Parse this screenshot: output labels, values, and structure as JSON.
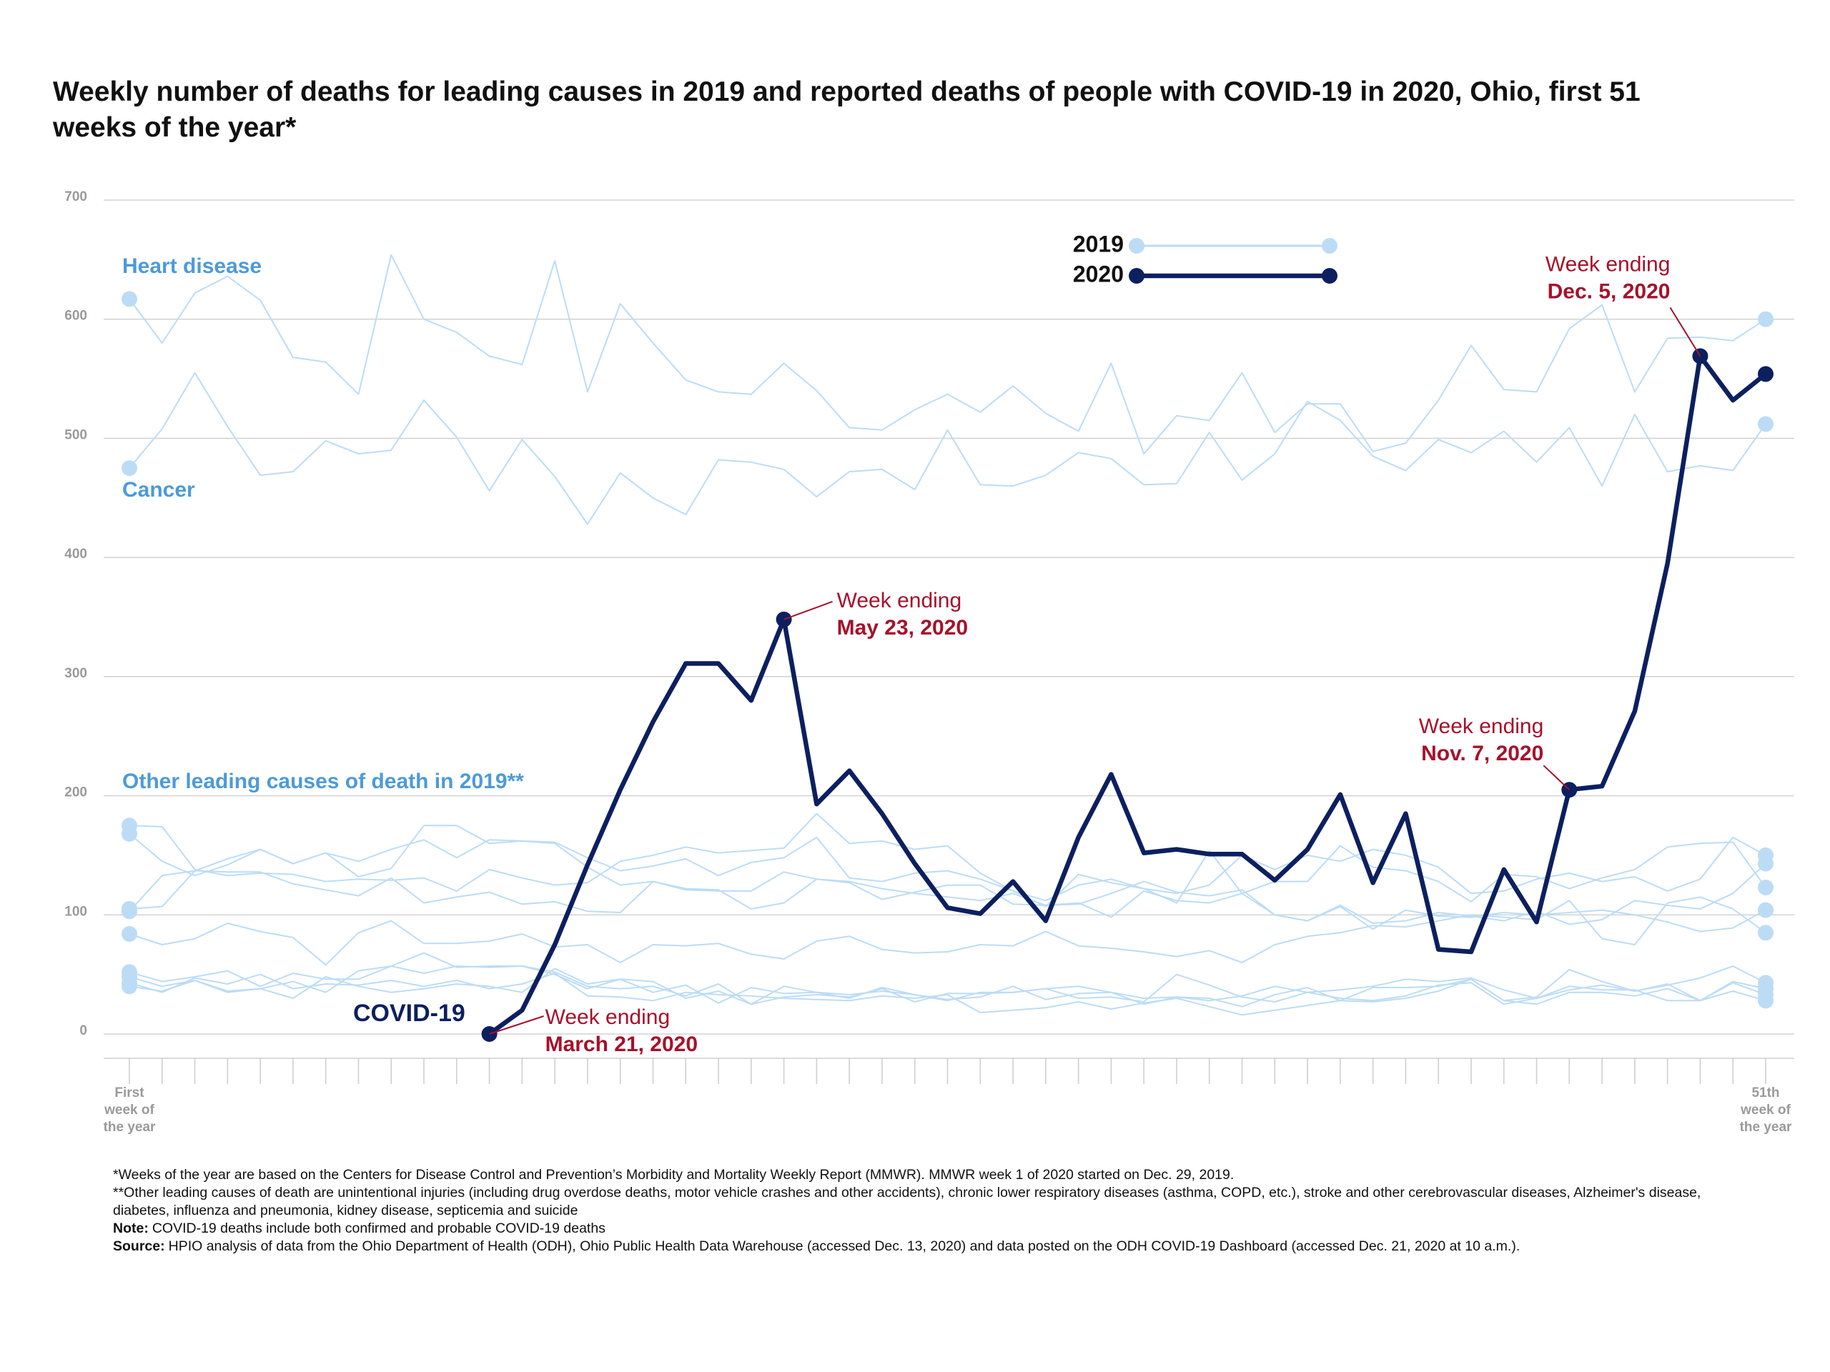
{
  "title": "Weekly number of deaths for leading causes in 2019 and reported deaths of people with COVID-19 in 2020, Ohio, first 51 weeks of the year*",
  "chart_data": {
    "type": "line",
    "categories": [
      "First week of the year",
      null,
      null,
      null,
      null,
      null,
      null,
      null,
      null,
      null,
      null,
      null,
      null,
      null,
      null,
      null,
      null,
      null,
      null,
      null,
      null,
      null,
      null,
      null,
      null,
      null,
      null,
      null,
      null,
      null,
      null,
      null,
      null,
      null,
      null,
      null,
      null,
      null,
      null,
      null,
      null,
      null,
      null,
      null,
      null,
      null,
      null,
      null,
      null,
      null,
      "51th week of the year"
    ],
    "ylim": [
      0,
      700
    ],
    "yticks": [
      0,
      100,
      200,
      300,
      400,
      500,
      600,
      700
    ],
    "grid": true,
    "legend": [
      {
        "label": "2019",
        "color": "#bcdcf6"
      },
      {
        "label": "2020",
        "color": "#0c1f5f"
      }
    ],
    "group_label": "Other leading causes of death in 2019**",
    "series": [
      {
        "color": "#bcdcf6",
        "markers": [
          0,
          50
        ],
        "values": [
          175,
          174,
          138,
          133,
          135,
          134,
          128,
          130,
          129,
          131,
          120,
          138,
          131,
          125,
          127,
          145,
          150,
          157,
          152,
          154,
          156,
          185,
          160,
          162,
          155,
          158,
          135,
          120,
          112,
          125,
          130,
          122,
          118,
          125,
          150,
          138,
          150,
          145,
          155,
          150,
          140,
          118,
          120,
          130,
          135,
          128,
          132,
          120,
          130,
          165,
          150
        ]
      },
      {
        "color": "#bcdcf6",
        "markers": [
          0,
          50
        ],
        "values": [
          168,
          145,
          133,
          142,
          155,
          143,
          152,
          145,
          155,
          163,
          148,
          163,
          162,
          160,
          140,
          125,
          128,
          122,
          121,
          105,
          110,
          130,
          128,
          122,
          118,
          115,
          112,
          118,
          108,
          110,
          98,
          120,
          112,
          110,
          118,
          100,
          95,
          108,
          93,
          95,
          102,
          99,
          95,
          103,
          92,
          96,
          112,
          108,
          105,
          118,
          143
        ]
      },
      {
        "color": "#bcdcf6",
        "markers": [
          0,
          50
        ],
        "values": [
          105,
          107,
          137,
          147,
          155,
          143,
          152,
          132,
          139,
          175,
          175,
          160,
          162,
          161,
          148,
          137,
          141,
          147,
          133,
          144,
          148,
          165,
          131,
          128,
          135,
          137,
          130,
          120,
          107,
          134,
          127,
          122,
          110,
          154,
          118,
          128,
          128,
          158,
          140,
          137,
          128,
          111,
          134,
          132,
          122,
          131,
          138,
          157,
          160,
          161,
          123
        ]
      },
      {
        "color": "#bcdcf6",
        "markers": [
          0,
          50
        ],
        "values": [
          103,
          133,
          137,
          136,
          136,
          126,
          121,
          116,
          131,
          110,
          115,
          119,
          109,
          111,
          103,
          102,
          128,
          121,
          120,
          120,
          136,
          130,
          127,
          113,
          119,
          125,
          125,
          109,
          108,
          109,
          118,
          128,
          119,
          116,
          121,
          100,
          95,
          107,
          88,
          104,
          99,
          98,
          102,
          100,
          102,
          104,
          100,
          94,
          86,
          89,
          104
        ]
      },
      {
        "color": "#bcdcf6",
        "markers": [
          0,
          50
        ],
        "values": [
          84,
          75,
          80,
          93,
          86,
          81,
          58,
          85,
          95,
          76,
          76,
          78,
          84,
          73,
          75,
          60,
          75,
          74,
          76,
          67,
          63,
          78,
          82,
          71,
          68,
          69,
          75,
          74,
          86,
          74,
          72,
          69,
          65,
          70,
          60,
          75,
          82,
          85,
          91,
          90,
          95,
          100,
          98,
          96,
          112,
          80,
          75,
          110,
          115,
          105,
          85
        ]
      },
      {
        "color": "#bcdcf6",
        "markers": [
          0,
          50
        ],
        "values": [
          52,
          44,
          48,
          53,
          40,
          51,
          46,
          46,
          57,
          51,
          57,
          56,
          57,
          52,
          40,
          38,
          40,
          32,
          42,
          25,
          40,
          35,
          33,
          36,
          33,
          29,
          31,
          40,
          29,
          34,
          35,
          25,
          31,
          30,
          23,
          33,
          39,
          28,
          39,
          39,
          40,
          46,
          28,
          31,
          54,
          44,
          36,
          41,
          47,
          57,
          43
        ]
      },
      {
        "color": "#bcdcf6",
        "markers": [
          0,
          50
        ],
        "values": [
          48,
          40,
          45,
          35,
          38,
          44,
          35,
          53,
          57,
          68,
          56,
          57,
          57,
          50,
          38,
          46,
          44,
          30,
          36,
          25,
          31,
          33,
          31,
          38,
          27,
          34,
          34,
          35,
          38,
          30,
          31,
          27,
          50,
          41,
          31,
          27,
          35,
          37,
          40,
          46,
          44,
          47,
          37,
          30,
          40,
          37,
          37,
          28,
          28,
          44,
          38
        ]
      },
      {
        "color": "#bcdcf6",
        "markers": [
          0,
          50
        ],
        "values": [
          43,
          35,
          47,
          42,
          50,
          38,
          42,
          41,
          45,
          40,
          45,
          38,
          42,
          51,
          32,
          31,
          28,
          35,
          33,
          32,
          30,
          29,
          28,
          32,
          30,
          33,
          18,
          20,
          22,
          27,
          21,
          26,
          30,
          23,
          16,
          20,
          24,
          28,
          27,
          30,
          36,
          46,
          28,
          25,
          35,
          35,
          32,
          38,
          28,
          43,
          33
        ]
      },
      {
        "color": "#bcdcf6",
        "markers": [
          0,
          50
        ],
        "values": [
          40,
          36,
          45,
          36,
          38,
          30,
          48,
          40,
          35,
          38,
          42,
          40,
          35,
          55,
          42,
          46,
          35,
          41,
          26,
          39,
          34,
          35,
          30,
          39,
          33,
          28,
          35,
          35,
          38,
          40,
          35,
          30,
          31,
          28,
          32,
          40,
          35,
          30,
          28,
          32,
          41,
          43,
          25,
          30,
          37,
          41,
          36,
          42,
          28,
          36,
          28
        ]
      },
      {
        "name": "Heart disease",
        "color": "#bcdcf6",
        "markers": [
          0,
          50
        ],
        "values": [
          617,
          580,
          622,
          636,
          616,
          568,
          564,
          537,
          654,
          600,
          589,
          569,
          562,
          649,
          539,
          613,
          580,
          549,
          539,
          537,
          563,
          540,
          509,
          507,
          524,
          537,
          522,
          544,
          521,
          506,
          563,
          487,
          519,
          515,
          555,
          505,
          529,
          529,
          489,
          496,
          532,
          578,
          541,
          539,
          592,
          612,
          539,
          584,
          585,
          582,
          600
        ]
      },
      {
        "name": "Cancer",
        "color": "#bcdcf6",
        "markers": [
          0,
          50
        ],
        "values": [
          475,
          508,
          555,
          510,
          469,
          472,
          498,
          487,
          490,
          532,
          501,
          456,
          499,
          468,
          428,
          471,
          450,
          436,
          482,
          480,
          474,
          451,
          472,
          474,
          457,
          507,
          461,
          460,
          469,
          488,
          483,
          461,
          462,
          505,
          465,
          487,
          531,
          515,
          485,
          473,
          499,
          488,
          506,
          480,
          509,
          460,
          520,
          472,
          477,
          473,
          512
        ]
      },
      {
        "name": "COVID-19",
        "color": "#0c1f5f",
        "markers": [
          11,
          20,
          44,
          48,
          50
        ],
        "values": [
          null,
          null,
          null,
          null,
          null,
          null,
          null,
          null,
          null,
          null,
          null,
          0,
          20,
          75,
          142,
          205,
          262,
          311,
          311,
          280,
          348,
          193,
          221,
          185,
          143,
          106,
          101,
          128,
          95,
          165,
          218,
          152,
          155,
          151,
          151,
          129,
          155,
          201,
          127,
          185,
          71,
          69,
          138,
          94,
          205,
          208,
          271,
          395,
          569,
          532,
          554
        ]
      }
    ],
    "annotations": [
      {
        "text": "Week ending",
        "date": "March 21, 2020",
        "week": 12
      },
      {
        "text": "Week ending",
        "date": "May 23, 2020",
        "week": 21
      },
      {
        "text": "Week ending",
        "date": "Nov. 7, 2020",
        "week": 45
      },
      {
        "text": "Week ending",
        "date": "Dec. 5, 2020",
        "week": 49
      }
    ]
  },
  "notes": [
    {
      "text": "*Weeks of the year are based on the Centers for Disease Control and Prevention’s Morbidity and Mortality Weekly Report (MMWR). MMWR week 1 of 2020 started on Dec. 29, 2019."
    },
    {
      "text": "**Other leading causes of death are unintentional injuries (including drug overdose deaths, motor vehicle crashes and other accidents), chronic lower respiratory diseases (asthma, COPD, etc.), stroke and other cerebrovascular diseases, Alzheimer's disease, diabetes, influenza and pneumonia, kidney disease, septicemia and suicide"
    },
    {
      "label": "Note:",
      "text": "COVID-19 deaths include both confirmed and probable COVID-19 deaths"
    },
    {
      "label": "Source:",
      "text": "HPIO analysis of data from the Ohio Department of Health (ODH), Ohio Public Health Data Warehouse (accessed Dec. 13, 2020) and data posted on the ODH COVID-19 Dashboard (accessed Dec. 21, 2020 at 10 a.m.)."
    }
  ]
}
